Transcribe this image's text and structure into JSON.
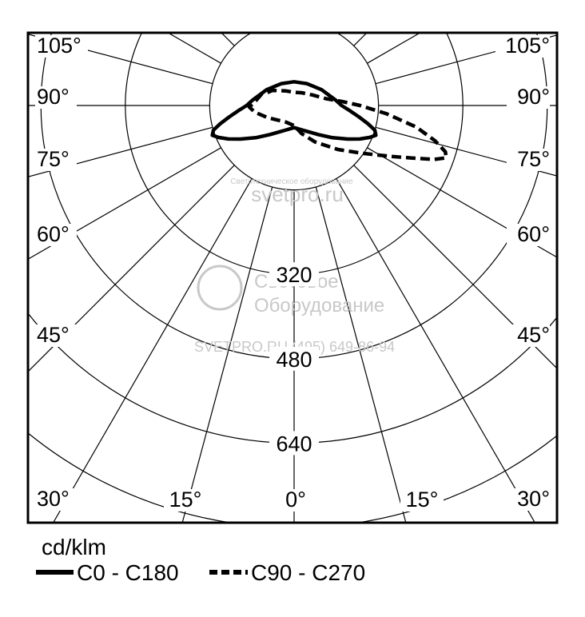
{
  "chart_data": {
    "type": "polar",
    "unit_label": "cd/klm",
    "radial_ticks": [
      320,
      480,
      640
    ],
    "radial_tick_labels": [
      "320",
      "480",
      "640"
    ],
    "radial_max": 800,
    "angle_labels_left": [
      "105°",
      "90°",
      "75°",
      "60°",
      "45°",
      "30°",
      "15°"
    ],
    "angle_labels_right": [
      "105°",
      "90°",
      "75°",
      "60°",
      "45°",
      "30°",
      "15°"
    ],
    "angle_label_bottom": "0°",
    "series": [
      {
        "name": "C0 - C180",
        "style": "solid",
        "points": [
          {
            "angle": -97,
            "value": 80
          },
          {
            "angle": -90,
            "value": 90
          },
          {
            "angle": -85,
            "value": 105
          },
          {
            "angle": -80,
            "value": 125
          },
          {
            "angle": -76,
            "value": 145
          },
          {
            "angle": -73,
            "value": 160
          },
          {
            "angle": -70,
            "value": 165
          },
          {
            "angle": -67,
            "value": 155
          },
          {
            "angle": -63,
            "value": 140
          },
          {
            "angle": -58,
            "value": 120
          },
          {
            "angle": -50,
            "value": 95
          },
          {
            "angle": -40,
            "value": 72
          },
          {
            "angle": -30,
            "value": 58
          },
          {
            "angle": -20,
            "value": 50
          },
          {
            "angle": -10,
            "value": 45
          },
          {
            "angle": 0,
            "value": 42
          },
          {
            "angle": 10,
            "value": 45
          },
          {
            "angle": 20,
            "value": 50
          },
          {
            "angle": 30,
            "value": 58
          },
          {
            "angle": 40,
            "value": 72
          },
          {
            "angle": 50,
            "value": 95
          },
          {
            "angle": 58,
            "value": 120
          },
          {
            "angle": 63,
            "value": 140
          },
          {
            "angle": 67,
            "value": 155
          },
          {
            "angle": 70,
            "value": 165
          },
          {
            "angle": 73,
            "value": 160
          },
          {
            "angle": 76,
            "value": 145
          },
          {
            "angle": 80,
            "value": 125
          },
          {
            "angle": 85,
            "value": 105
          },
          {
            "angle": 90,
            "value": 90
          },
          {
            "angle": 97,
            "value": 80
          },
          {
            "angle": 120,
            "value": 60
          },
          {
            "angle": 150,
            "value": 48
          },
          {
            "angle": 180,
            "value": 45
          },
          {
            "angle": 210,
            "value": 48
          },
          {
            "angle": 240,
            "value": 60
          },
          {
            "angle": 263,
            "value": 80
          }
        ]
      },
      {
        "name": "C90 - C270",
        "style": "dashed",
        "points": [
          {
            "angle": -110,
            "value": 65
          },
          {
            "angle": -95,
            "value": 75
          },
          {
            "angle": -88,
            "value": 85
          },
          {
            "angle": -80,
            "value": 75
          },
          {
            "angle": -65,
            "value": 55
          },
          {
            "angle": -45,
            "value": 40
          },
          {
            "angle": -25,
            "value": 35
          },
          {
            "angle": 0,
            "value": 38
          },
          {
            "angle": 15,
            "value": 55
          },
          {
            "angle": 30,
            "value": 80
          },
          {
            "angle": 45,
            "value": 118
          },
          {
            "angle": 55,
            "value": 158
          },
          {
            "angle": 62,
            "value": 205
          },
          {
            "angle": 66,
            "value": 245
          },
          {
            "angle": 69,
            "value": 285
          },
          {
            "angle": 71,
            "value": 305
          },
          {
            "angle": 73,
            "value": 300
          },
          {
            "angle": 76,
            "value": 275
          },
          {
            "angle": 80,
            "value": 235
          },
          {
            "angle": 85,
            "value": 175
          },
          {
            "angle": 90,
            "value": 125
          },
          {
            "angle": 95,
            "value": 90
          },
          {
            "angle": 102,
            "value": 62
          },
          {
            "angle": 120,
            "value": 40
          },
          {
            "angle": 150,
            "value": 28
          },
          {
            "angle": 180,
            "value": 25
          },
          {
            "angle": 210,
            "value": 32
          },
          {
            "angle": 235,
            "value": 50
          },
          {
            "angle": 250,
            "value": 62
          }
        ]
      }
    ],
    "legend": [
      {
        "label": "C0 - C180",
        "style": "solid"
      },
      {
        "label": "C90 - C270",
        "style": "dashed"
      }
    ],
    "grid": true
  },
  "watermark": {
    "line1": "Световое",
    "line2": "Оборудование",
    "line3": "SVETPRO.RU (495) 649-86-94",
    "top_small": "Светотехническое оборудование",
    "top_big": "svetpro.ru"
  }
}
